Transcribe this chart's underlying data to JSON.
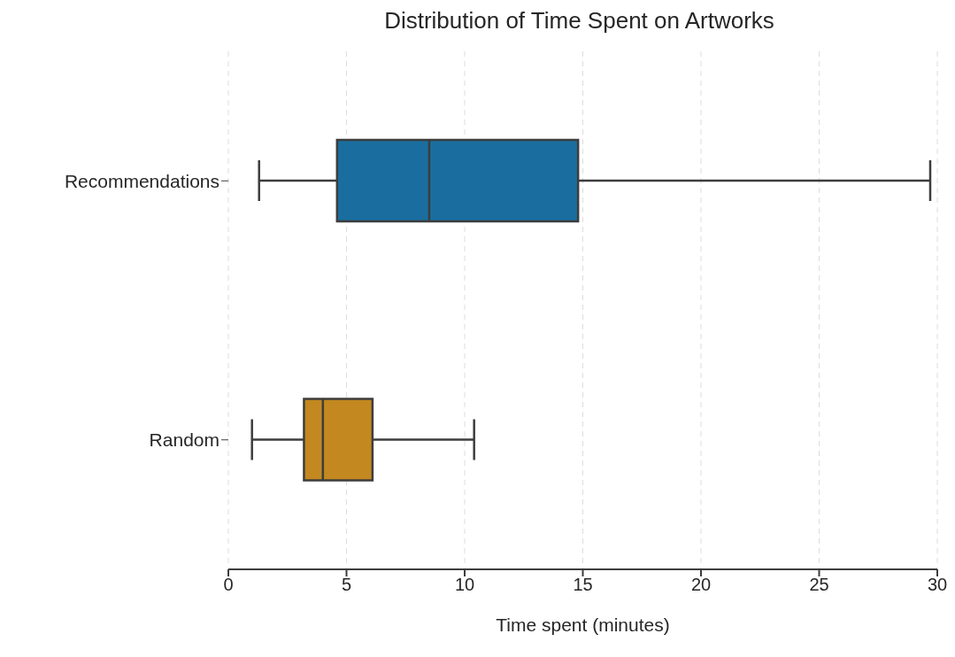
{
  "chart_data": {
    "type": "box",
    "title": "Distribution of Time Spent on Artworks",
    "xlabel": "Time spent (minutes)",
    "orientation": "horizontal",
    "categories": [
      "Recommendations",
      "Random"
    ],
    "colors": [
      "#1a6e9f",
      "#c38820"
    ],
    "boxes": [
      {
        "low": 1.3,
        "q1": 4.6,
        "median": 8.5,
        "q3": 14.8,
        "high": 29.7
      },
      {
        "low": 1.0,
        "q1": 3.2,
        "median": 4.0,
        "q3": 6.1,
        "high": 10.4
      }
    ],
    "xlim": [
      0,
      30
    ],
    "xticks": [
      0,
      5,
      10,
      15,
      20,
      25,
      30
    ],
    "grid": "x"
  }
}
